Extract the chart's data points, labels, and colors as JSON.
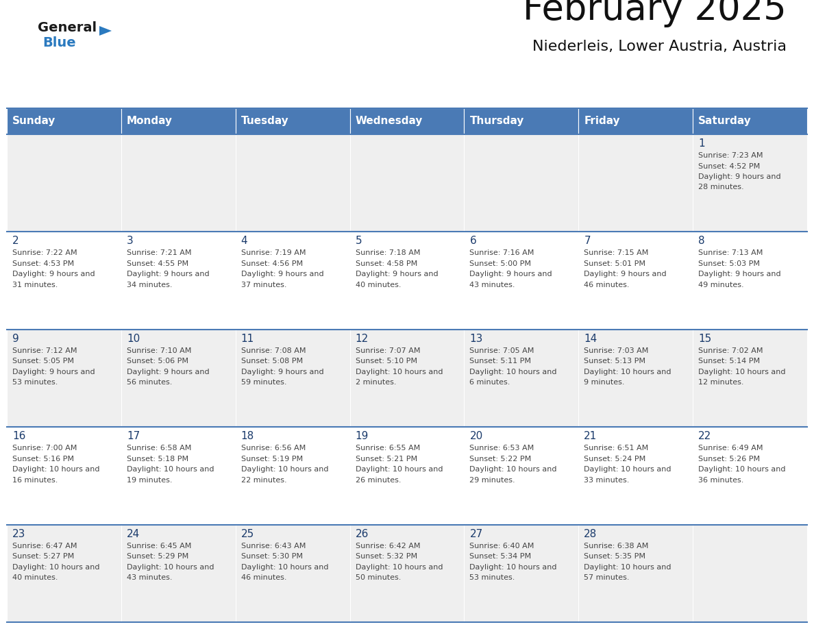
{
  "title": "February 2025",
  "subtitle": "Niederleis, Lower Austria, Austria",
  "header_color": "#4a7ab5",
  "header_text_color": "#ffffff",
  "row_bg_colors": [
    "#efefef",
    "#ffffff",
    "#efefef",
    "#ffffff",
    "#efefef"
  ],
  "day_names": [
    "Sunday",
    "Monday",
    "Tuesday",
    "Wednesday",
    "Thursday",
    "Friday",
    "Saturday"
  ],
  "text_color": "#444444",
  "day_number_color": "#1a3a6b",
  "line_color": "#4a7ab5",
  "logo_general_color": "#1a1a1a",
  "logo_blue_color": "#2b7abf",
  "logo_triangle_color": "#2b7abf",
  "days": [
    {
      "day": 1,
      "col": 6,
      "row": 0,
      "sunrise": "7:23 AM",
      "sunset": "4:52 PM",
      "daylight": "9 hours and 28 minutes."
    },
    {
      "day": 2,
      "col": 0,
      "row": 1,
      "sunrise": "7:22 AM",
      "sunset": "4:53 PM",
      "daylight": "9 hours and 31 minutes."
    },
    {
      "day": 3,
      "col": 1,
      "row": 1,
      "sunrise": "7:21 AM",
      "sunset": "4:55 PM",
      "daylight": "9 hours and 34 minutes."
    },
    {
      "day": 4,
      "col": 2,
      "row": 1,
      "sunrise": "7:19 AM",
      "sunset": "4:56 PM",
      "daylight": "9 hours and 37 minutes."
    },
    {
      "day": 5,
      "col": 3,
      "row": 1,
      "sunrise": "7:18 AM",
      "sunset": "4:58 PM",
      "daylight": "9 hours and 40 minutes."
    },
    {
      "day": 6,
      "col": 4,
      "row": 1,
      "sunrise": "7:16 AM",
      "sunset": "5:00 PM",
      "daylight": "9 hours and 43 minutes."
    },
    {
      "day": 7,
      "col": 5,
      "row": 1,
      "sunrise": "7:15 AM",
      "sunset": "5:01 PM",
      "daylight": "9 hours and 46 minutes."
    },
    {
      "day": 8,
      "col": 6,
      "row": 1,
      "sunrise": "7:13 AM",
      "sunset": "5:03 PM",
      "daylight": "9 hours and 49 minutes."
    },
    {
      "day": 9,
      "col": 0,
      "row": 2,
      "sunrise": "7:12 AM",
      "sunset": "5:05 PM",
      "daylight": "9 hours and 53 minutes."
    },
    {
      "day": 10,
      "col": 1,
      "row": 2,
      "sunrise": "7:10 AM",
      "sunset": "5:06 PM",
      "daylight": "9 hours and 56 minutes."
    },
    {
      "day": 11,
      "col": 2,
      "row": 2,
      "sunrise": "7:08 AM",
      "sunset": "5:08 PM",
      "daylight": "9 hours and 59 minutes."
    },
    {
      "day": 12,
      "col": 3,
      "row": 2,
      "sunrise": "7:07 AM",
      "sunset": "5:10 PM",
      "daylight": "10 hours and 2 minutes."
    },
    {
      "day": 13,
      "col": 4,
      "row": 2,
      "sunrise": "7:05 AM",
      "sunset": "5:11 PM",
      "daylight": "10 hours and 6 minutes."
    },
    {
      "day": 14,
      "col": 5,
      "row": 2,
      "sunrise": "7:03 AM",
      "sunset": "5:13 PM",
      "daylight": "10 hours and 9 minutes."
    },
    {
      "day": 15,
      "col": 6,
      "row": 2,
      "sunrise": "7:02 AM",
      "sunset": "5:14 PM",
      "daylight": "10 hours and 12 minutes."
    },
    {
      "day": 16,
      "col": 0,
      "row": 3,
      "sunrise": "7:00 AM",
      "sunset": "5:16 PM",
      "daylight": "10 hours and 16 minutes."
    },
    {
      "day": 17,
      "col": 1,
      "row": 3,
      "sunrise": "6:58 AM",
      "sunset": "5:18 PM",
      "daylight": "10 hours and 19 minutes."
    },
    {
      "day": 18,
      "col": 2,
      "row": 3,
      "sunrise": "6:56 AM",
      "sunset": "5:19 PM",
      "daylight": "10 hours and 22 minutes."
    },
    {
      "day": 19,
      "col": 3,
      "row": 3,
      "sunrise": "6:55 AM",
      "sunset": "5:21 PM",
      "daylight": "10 hours and 26 minutes."
    },
    {
      "day": 20,
      "col": 4,
      "row": 3,
      "sunrise": "6:53 AM",
      "sunset": "5:22 PM",
      "daylight": "10 hours and 29 minutes."
    },
    {
      "day": 21,
      "col": 5,
      "row": 3,
      "sunrise": "6:51 AM",
      "sunset": "5:24 PM",
      "daylight": "10 hours and 33 minutes."
    },
    {
      "day": 22,
      "col": 6,
      "row": 3,
      "sunrise": "6:49 AM",
      "sunset": "5:26 PM",
      "daylight": "10 hours and 36 minutes."
    },
    {
      "day": 23,
      "col": 0,
      "row": 4,
      "sunrise": "6:47 AM",
      "sunset": "5:27 PM",
      "daylight": "10 hours and 40 minutes."
    },
    {
      "day": 24,
      "col": 1,
      "row": 4,
      "sunrise": "6:45 AM",
      "sunset": "5:29 PM",
      "daylight": "10 hours and 43 minutes."
    },
    {
      "day": 25,
      "col": 2,
      "row": 4,
      "sunrise": "6:43 AM",
      "sunset": "5:30 PM",
      "daylight": "10 hours and 46 minutes."
    },
    {
      "day": 26,
      "col": 3,
      "row": 4,
      "sunrise": "6:42 AM",
      "sunset": "5:32 PM",
      "daylight": "10 hours and 50 minutes."
    },
    {
      "day": 27,
      "col": 4,
      "row": 4,
      "sunrise": "6:40 AM",
      "sunset": "5:34 PM",
      "daylight": "10 hours and 53 minutes."
    },
    {
      "day": 28,
      "col": 5,
      "row": 4,
      "sunrise": "6:38 AM",
      "sunset": "5:35 PM",
      "daylight": "10 hours and 57 minutes."
    }
  ]
}
